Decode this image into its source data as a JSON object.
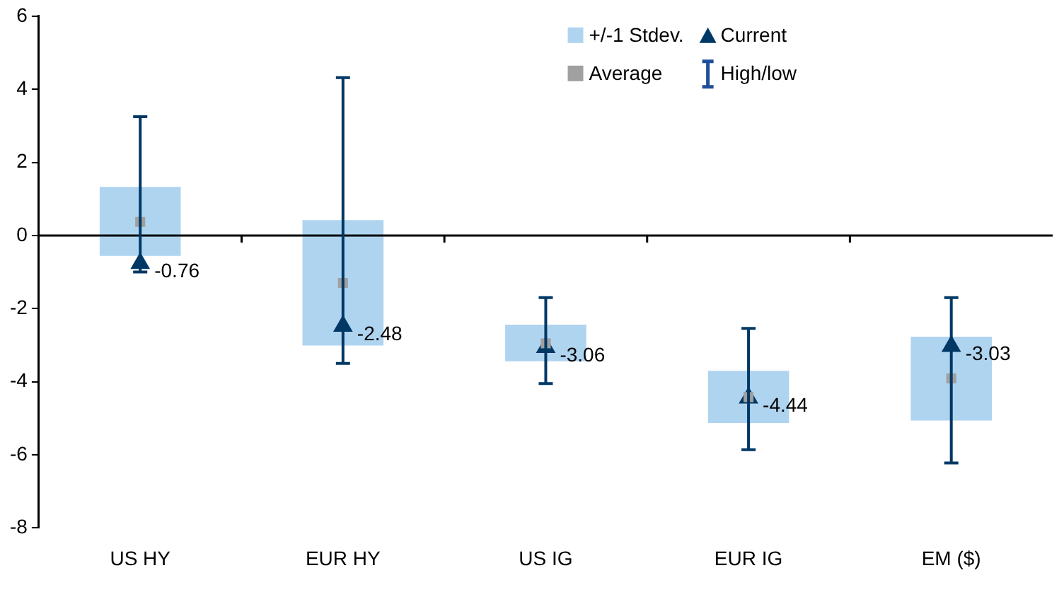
{
  "chart_data": {
    "type": "bar",
    "categories": [
      "US HY",
      "EUR HY",
      "US IG",
      "EUR IG",
      "EM ($)"
    ],
    "ylim": [
      -8,
      6
    ],
    "yticks": [
      -8,
      -6,
      -4,
      -2,
      0,
      2,
      4,
      6
    ],
    "grid": false,
    "legend": "top right",
    "ref_lines": [
      {
        "axis": "y",
        "value": 0,
        "color": "#000000"
      }
    ],
    "series": [
      {
        "name": "+/-1 Stdev.",
        "color": "#afd4f0",
        "base": [
          -0.56,
          -3.01,
          -3.44,
          -5.13,
          -5.06
        ],
        "values": [
          1.89,
          3.43,
          1.0,
          1.43,
          2.29
        ]
      },
      {
        "name": "High/low",
        "type": "scatter",
        "marker": "none",
        "color": "#1f4e9a",
        "values": [
          null,
          null,
          null,
          null,
          null
        ]
      },
      {
        "name": "Average",
        "type": "scatter",
        "marker": "square",
        "color": "#a0a0a0",
        "values": [
          0.37,
          -1.3,
          -2.95,
          -4.42,
          -3.91
        ]
      },
      {
        "name": "Current",
        "type": "scatter",
        "marker": "triangle",
        "color": "#003865",
        "values": [
          -0.76,
          -2.48,
          -3.06,
          -4.44,
          -3.03
        ],
        "errors": [
          [
            -1.0,
            3.25
          ],
          [
            -3.5,
            4.32
          ],
          [
            -4.05,
            -1.7
          ],
          [
            -5.86,
            -2.54
          ],
          [
            -6.22,
            -1.7
          ]
        ],
        "value_labels": [
          "-0.76",
          "-2.48",
          "-3.06",
          "-4.44",
          "-3.03"
        ]
      }
    ]
  }
}
